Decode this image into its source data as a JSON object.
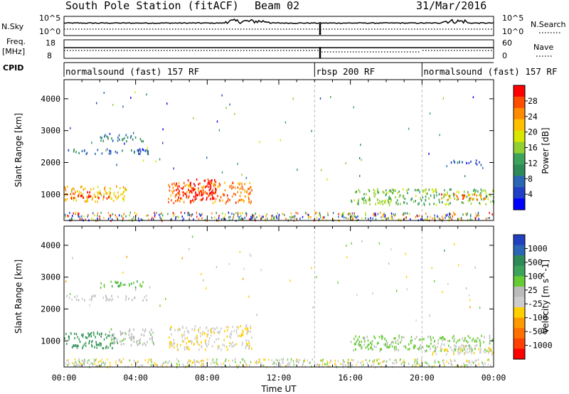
{
  "header": {
    "station": "South Pole Station (fitACF)",
    "beam": "Beam 02",
    "date": "31/Mar/2016"
  },
  "panels": {
    "nsky": {
      "label": "N.Sky",
      "ticks": [
        "10^5",
        "10^0"
      ],
      "right_label": "N.Search",
      "right_ticks": [
        "10^5",
        "10^0"
      ]
    },
    "freq": {
      "label1": "Freq.",
      "label2": "[MHz]",
      "ticks": [
        "18",
        "8"
      ],
      "right_label": "Nave",
      "right_ticks": [
        "60",
        "0"
      ]
    },
    "cpid": {
      "label": "CPID",
      "segments": [
        {
          "name": "normalsound (fast) 157 RF",
          "start": 0,
          "end": 14.0
        },
        {
          "name": "rbsp 200 RF",
          "start": 14.0,
          "end": 20.0
        },
        {
          "name": "normalsound (fast) 157 RF",
          "start": 20.0,
          "end": 24.0
        }
      ]
    }
  },
  "colorbars": {
    "power": {
      "title": "Power [dB]",
      "ticks": [
        "28",
        "24",
        "20",
        "16",
        "12",
        "8",
        "4"
      ],
      "colors": [
        "#ff0000",
        "#ff4d00",
        "#ff8c00",
        "#ffc000",
        "#d8e600",
        "#92cf30",
        "#3da35a",
        "#2e8b57",
        "#2a66b4",
        "#2040c8",
        "#0000ff"
      ]
    },
    "velocity": {
      "title": "Velocity [m s^-1]",
      "ticks": [
        "1000",
        "500",
        "100",
        "25",
        "-25",
        "-100",
        "-500",
        "-1000"
      ],
      "colors": [
        "#2040c0",
        "#2a66b4",
        "#2e8b57",
        "#3da35a",
        "#66cc33",
        "#bbbbbb",
        "#cccccc",
        "#ffd000",
        "#ff9900",
        "#ff7000",
        "#ff4000",
        "#ff0000"
      ]
    }
  },
  "chart_data": [
    {
      "type": "heatmap",
      "quantity": "Power",
      "units": "dB",
      "ylabel": "Slant Range [km]",
      "xlabel": "Time UT",
      "xlim": [
        0,
        24
      ],
      "ylim": [
        180,
        4600
      ],
      "xticks": [
        "00:00",
        "04:00",
        "08:00",
        "12:00",
        "16:00",
        "20:00",
        "00:00"
      ],
      "yticks": [
        "1000",
        "2000",
        "3000",
        "4000"
      ],
      "clim": [
        0,
        30
      ],
      "regions": [
        {
          "t0": 0.0,
          "t1": 3.5,
          "r0": 800,
          "r1": 1300,
          "value": 20
        },
        {
          "t0": 0.3,
          "t1": 2.5,
          "r0": 900,
          "r1": 1100,
          "value": 27
        },
        {
          "t0": 5.8,
          "t1": 10.5,
          "r0": 750,
          "r1": 1400,
          "value": 24
        },
        {
          "t0": 6.2,
          "t1": 8.5,
          "r0": 850,
          "r1": 1500,
          "value": 29
        },
        {
          "t0": 0.0,
          "t1": 4.8,
          "r0": 2300,
          "r1": 2450,
          "value": 6
        },
        {
          "t0": 2.0,
          "t1": 4.5,
          "r0": 2700,
          "r1": 2900,
          "value": 9
        },
        {
          "t0": 16.0,
          "t1": 24.0,
          "r0": 700,
          "r1": 1200,
          "value": 14
        },
        {
          "t0": 21.0,
          "t1": 23.5,
          "r0": 850,
          "r1": 1050,
          "value": 24
        },
        {
          "t0": 21.5,
          "t1": 23.3,
          "r0": 1950,
          "r1": 2100,
          "value": 5
        }
      ]
    },
    {
      "type": "heatmap",
      "quantity": "Velocity",
      "units": "m s^-1",
      "ylabel": "Slant Range [km]",
      "xlabel": "Time UT",
      "xlim": [
        0,
        24
      ],
      "ylim": [
        180,
        4600
      ],
      "xticks": [
        "00:00",
        "04:00",
        "08:00",
        "12:00",
        "16:00",
        "20:00",
        "00:00"
      ],
      "yticks": [
        "1000",
        "2000",
        "3000",
        "4000"
      ],
      "clim": [
        -1000,
        1000
      ],
      "regions": [
        {
          "t0": 0.0,
          "t1": 3.0,
          "r0": 800,
          "r1": 1300,
          "value": 500
        },
        {
          "t0": 2.5,
          "t1": 5.0,
          "r0": 900,
          "r1": 1400,
          "value": 100
        },
        {
          "t0": 5.8,
          "t1": 10.5,
          "r0": 750,
          "r1": 1500,
          "value": -150
        },
        {
          "t0": 0.0,
          "t1": 4.8,
          "r0": 2300,
          "r1": 2450,
          "value": 0
        },
        {
          "t0": 2.0,
          "t1": 4.5,
          "r0": 2700,
          "r1": 2900,
          "value": 300
        },
        {
          "t0": 16.0,
          "t1": 24.0,
          "r0": 700,
          "r1": 1200,
          "value": 200
        },
        {
          "t0": 20.5,
          "t1": 24.0,
          "r0": 600,
          "r1": 900,
          "value": -120
        }
      ]
    }
  ]
}
